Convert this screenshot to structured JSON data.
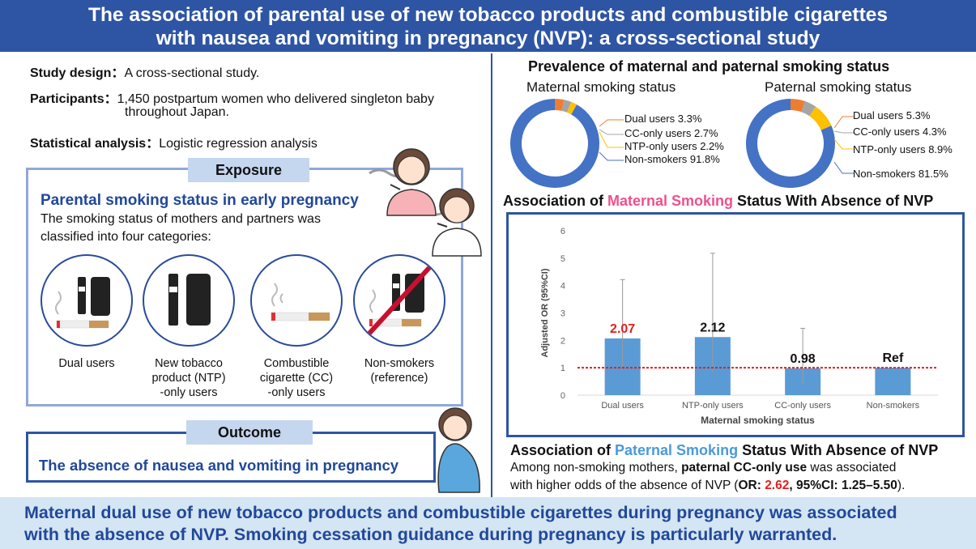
{
  "title": {
    "line1": "The association of parental use of new tobacco products and combustible cigarettes",
    "line2": "with nausea and vomiting in pregnancy (NVP): a cross-sectional study"
  },
  "study": {
    "design_label": "Study design：",
    "design_value": "A cross-sectional study.",
    "participants_label": "Participants：",
    "participants_line1": "1,450 postpartum women who delivered singleton baby",
    "participants_line2": "throughout Japan.",
    "analysis_label": "Statistical analysis：",
    "analysis_value": "Logistic regression analysis"
  },
  "exposure": {
    "pill": "Exposure",
    "heading": "Parental smoking status in early pregnancy",
    "desc_line1": "The smoking status of mothers and partners was",
    "desc_line2": "classified into four categories:",
    "categories": [
      {
        "line1": "Dual users",
        "line2": "",
        "line3": ""
      },
      {
        "line1": "New tobacco",
        "line2": "product (NTP)",
        "line3": "-only users"
      },
      {
        "line1": "Combustible",
        "line2": "cigarette (CC)",
        "line3": "-only users"
      },
      {
        "line1": "Non-smokers",
        "line2": "(reference)",
        "line3": ""
      }
    ]
  },
  "outcome": {
    "pill": "Outcome",
    "text": "The absence of nausea and vomiting in pregnancy"
  },
  "prevalence": {
    "heading": "Prevalence of maternal and paternal smoking status",
    "maternal_title": "Maternal smoking status",
    "paternal_title": "Paternal smoking status",
    "maternal": [
      {
        "label": "Dual users 3.3%",
        "value": 3.3,
        "color": "#ed7d31"
      },
      {
        "label": "CC-only users 2.7%",
        "value": 2.7,
        "color": "#a5a5a5"
      },
      {
        "label": "NTP-only users 2.2%",
        "value": 2.2,
        "color": "#ffc000"
      },
      {
        "label": "Non-smokers 91.8%",
        "value": 91.8,
        "color": "#4472c4"
      }
    ],
    "paternal": [
      {
        "label": "Dual users 5.3%",
        "value": 5.3,
        "color": "#ed7d31"
      },
      {
        "label": "CC-only users 4.3%",
        "value": 4.3,
        "color": "#a5a5a5"
      },
      {
        "label": "NTP-only users 8.9%",
        "value": 8.9,
        "color": "#ffc000"
      },
      {
        "label": "Non-smokers 81.5%",
        "value": 81.5,
        "color": "#4472c4"
      }
    ]
  },
  "maternal_assoc": {
    "heading_pre": "Association of ",
    "heading_hl": "Maternal Smoking",
    "heading_post": " Status With Absence of NVP"
  },
  "paternal_assoc": {
    "heading_pre": "Association of ",
    "heading_hl": "Paternal Smoking",
    "heading_post": " Status With Absence of NVP",
    "line1_pre": "Among non-smoking mothers, ",
    "line1_bold": "paternal CC-only use",
    "line1_post": " was associated",
    "line2_pre": "with higher odds of the absence of NVP (",
    "line2_or": "OR: ",
    "line2_orval": "2.62",
    "line2_ci": ", 95%CI: 1.25–5.50",
    "line2_post": ")."
  },
  "conclusion": {
    "line1": "Maternal dual use of new tobacco products and combustible cigarettes during pregnancy was associated",
    "line2": "with the absence of NVP. Smoking cessation guidance during pregnancy is particularly warranted."
  },
  "colors": {
    "accent": "#2e55a4",
    "highlight_pink": "#f0508c",
    "highlight_blue": "#4a9ad8",
    "bar": "#5b9bd5",
    "red": "#e02020"
  },
  "chart_data": {
    "type": "bar",
    "categories": [
      "Dual users",
      "NTP-only users",
      "CC-only users",
      "Non-smokers"
    ],
    "values": [
      2.07,
      2.12,
      0.98,
      1
    ],
    "value_labels": [
      "2.07",
      "2.12",
      "0.98",
      "Ref"
    ],
    "ci_upper": [
      4.22,
      5.18,
      2.44,
      null
    ],
    "ci_lower": [
      1.02,
      0.87,
      0.39,
      null
    ],
    "xlabel": "Maternal smoking status",
    "ylabel": "Adjusted OR (95%CI)",
    "ylim": [
      0,
      6
    ],
    "yticks": [
      "0",
      "1",
      "2",
      "3",
      "4",
      "5",
      "6"
    ],
    "reference_line": 1,
    "grid": false
  }
}
